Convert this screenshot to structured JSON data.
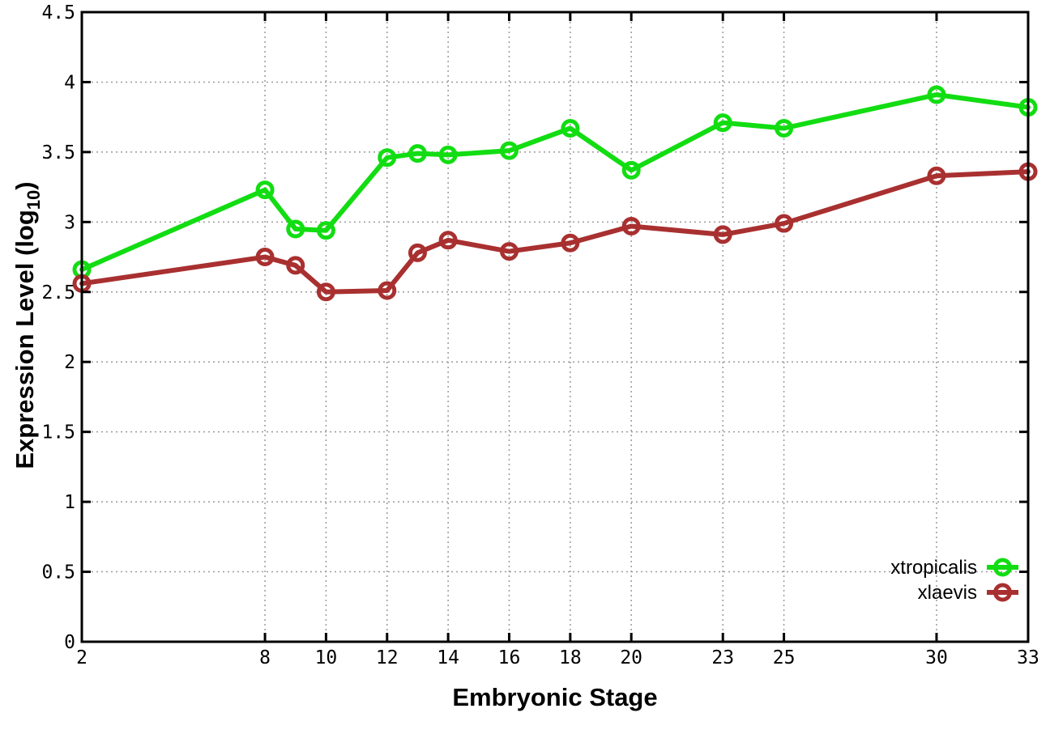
{
  "chart_data": {
    "type": "line",
    "title": "",
    "xlabel": "Embryonic Stage",
    "ylabel_prefix": "Expression Level (log",
    "ylabel_sub": "10",
    "ylabel_suffix": ")",
    "xlim": [
      2,
      33
    ],
    "ylim": [
      0,
      4.5
    ],
    "grid": true,
    "legend_position": "bottom-right",
    "marker": "open-circle",
    "x": [
      2,
      8,
      9,
      10,
      12,
      13,
      14,
      16,
      18,
      20,
      23,
      25,
      30,
      33
    ],
    "series": [
      {
        "name": "xtropicalis",
        "color": "#12dd12",
        "values": [
          2.66,
          3.23,
          2.95,
          2.94,
          3.46,
          3.49,
          3.48,
          3.51,
          3.67,
          3.37,
          3.71,
          3.67,
          3.91,
          3.82
        ]
      },
      {
        "name": "xlaevis",
        "color": "#a93030",
        "values": [
          2.56,
          2.75,
          2.69,
          2.5,
          2.51,
          2.78,
          2.87,
          2.79,
          2.85,
          2.97,
          2.91,
          2.99,
          3.33,
          3.36
        ]
      }
    ],
    "xtick_values": [
      2,
      8,
      10,
      12,
      14,
      16,
      18,
      20,
      23,
      25,
      30,
      33
    ],
    "xtick_labels": [
      "2",
      "8",
      "10",
      "12",
      "14",
      "16",
      "18",
      "20",
      "23",
      "25",
      "30",
      "33"
    ],
    "ytick_values": [
      0,
      0.5,
      1,
      1.5,
      2,
      2.5,
      3,
      3.5,
      4,
      4.5
    ],
    "ytick_labels": [
      "0",
      "0.5",
      "1",
      "1.5",
      "2",
      "2.5",
      "3",
      "3.5",
      "4",
      "4.5"
    ]
  },
  "colors": {
    "background": "#ffffff",
    "axis": "#000000",
    "grid": "#9a9a9a",
    "text": "#000000"
  }
}
